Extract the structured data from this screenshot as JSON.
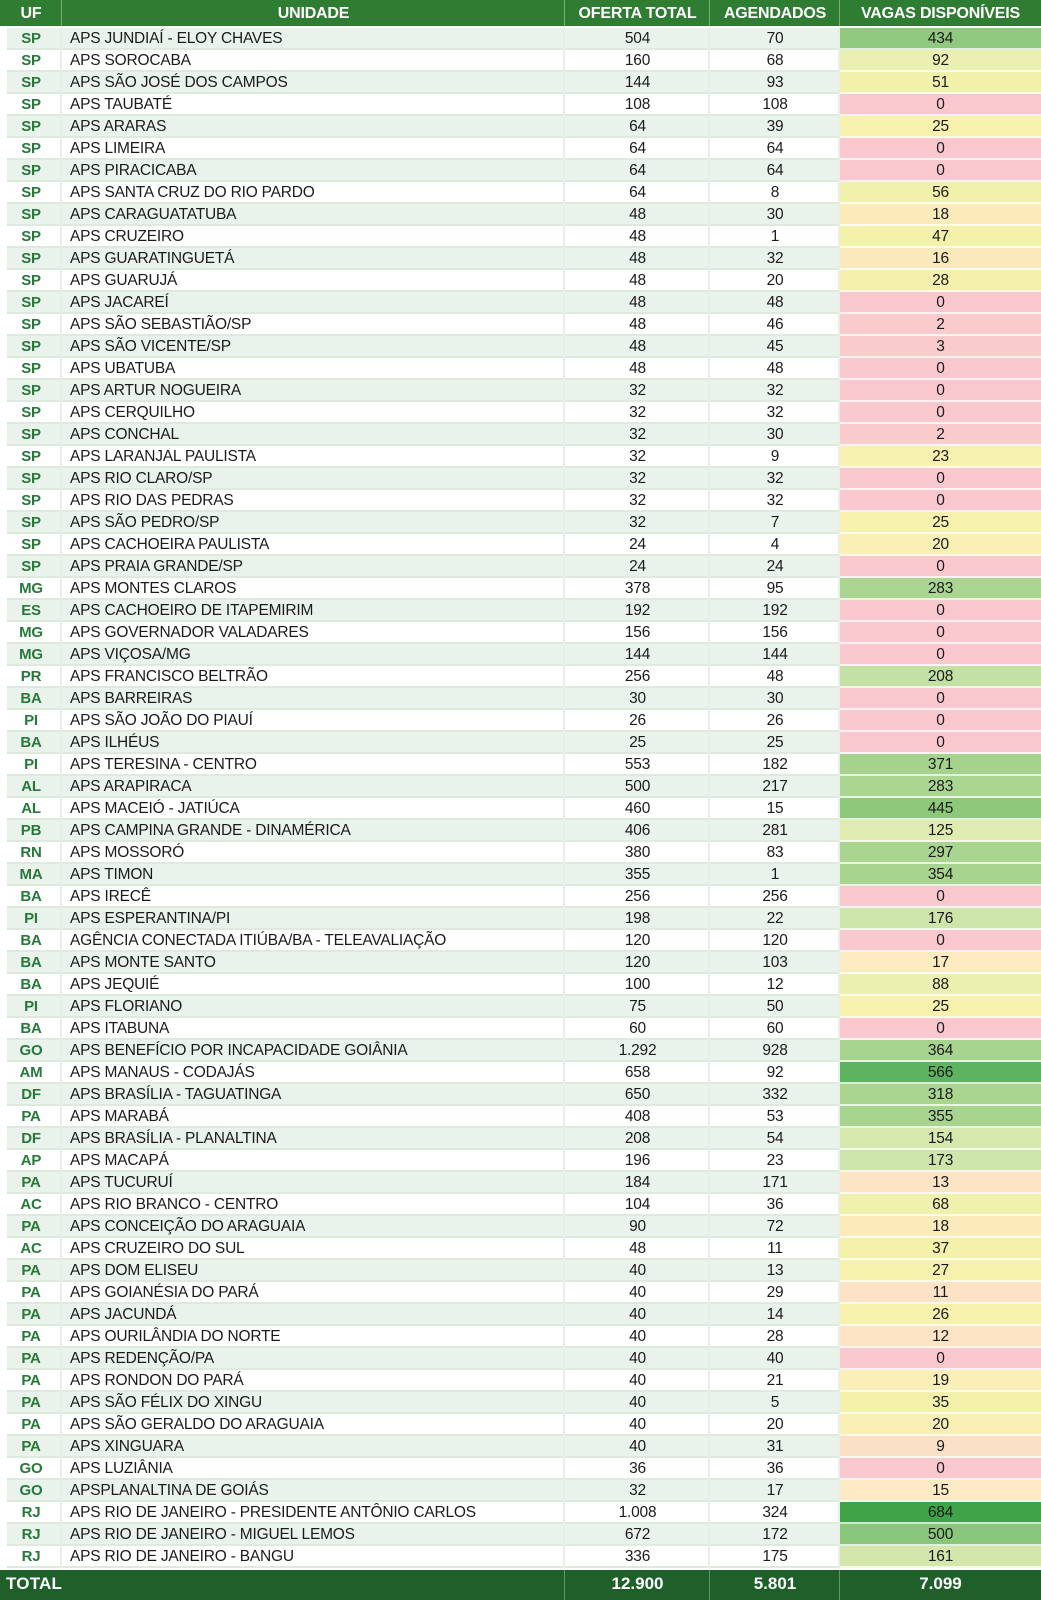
{
  "columns": {
    "uf": "UF",
    "unidade": "UNIDADE",
    "oferta": "OFERTA TOTAL",
    "agendados": "AGENDADOS",
    "vagas": "VAGAS DISPONÍVEIS"
  },
  "total": {
    "label": "TOTAL",
    "oferta": "12.900",
    "agendados": "5.801",
    "vagas": "7.099"
  },
  "colors": {
    "header_bg": "#2F7D33",
    "total_bg": "#1E5F2A",
    "row_light_bg": "#E9F3EB",
    "row_white_bg": "#FFFFFF",
    "uf_text_color": "#27793A",
    "text_color": "#1B1B1B"
  },
  "rows": [
    {
      "uf": "SP",
      "unidade": "APS JUNDIAÍ - ELOY CHAVES",
      "oferta": "504",
      "agendados": "70",
      "vagas": "434",
      "vagas_color": "#8FC97E"
    },
    {
      "uf": "SP",
      "unidade": "APS SOROCABA",
      "oferta": "160",
      "agendados": "68",
      "vagas": "92",
      "vagas_color": "#EAF0B1"
    },
    {
      "uf": "SP",
      "unidade": "APS SÃO JOSÉ DOS CAMPOS",
      "oferta": "144",
      "agendados": "93",
      "vagas": "51",
      "vagas_color": "#F2F1AA"
    },
    {
      "uf": "SP",
      "unidade": "APS TAUBATÉ",
      "oferta": "108",
      "agendados": "108",
      "vagas": "0",
      "vagas_color": "#F9C8CF"
    },
    {
      "uf": "SP",
      "unidade": "APS ARARAS",
      "oferta": "64",
      "agendados": "39",
      "vagas": "25",
      "vagas_color": "#F6F1AD"
    },
    {
      "uf": "SP",
      "unidade": "APS LIMEIRA",
      "oferta": "64",
      "agendados": "64",
      "vagas": "0",
      "vagas_color": "#F9C8CF"
    },
    {
      "uf": "SP",
      "unidade": "APS PIRACICABA",
      "oferta": "64",
      "agendados": "64",
      "vagas": "0",
      "vagas_color": "#F9C8CF"
    },
    {
      "uf": "SP",
      "unidade": "APS SANTA CRUZ DO RIO PARDO",
      "oferta": "64",
      "agendados": "8",
      "vagas": "56",
      "vagas_color": "#F1F1AB"
    },
    {
      "uf": "SP",
      "unidade": "APS CARAGUATATUBA",
      "oferta": "48",
      "agendados": "30",
      "vagas": "18",
      "vagas_color": "#FBEBBB"
    },
    {
      "uf": "SP",
      "unidade": "APS CRUZEIRO",
      "oferta": "48",
      "agendados": "1",
      "vagas": "47",
      "vagas_color": "#F3F1AA"
    },
    {
      "uf": "SP",
      "unidade": "APS GUARATINGUETÁ",
      "oferta": "48",
      "agendados": "32",
      "vagas": "16",
      "vagas_color": "#FBE9BE"
    },
    {
      "uf": "SP",
      "unidade": "APS GUARUJÁ",
      "oferta": "48",
      "agendados": "20",
      "vagas": "28",
      "vagas_color": "#F5F1AC"
    },
    {
      "uf": "SP",
      "unidade": "APS JACAREÍ",
      "oferta": "48",
      "agendados": "48",
      "vagas": "0",
      "vagas_color": "#F9C8CF"
    },
    {
      "uf": "SP",
      "unidade": "APS SÃO SEBASTIÃO/SP",
      "oferta": "48",
      "agendados": "46",
      "vagas": "2",
      "vagas_color": "#F9CBCD"
    },
    {
      "uf": "SP",
      "unidade": "APS SÃO VICENTE/SP",
      "oferta": "48",
      "agendados": "45",
      "vagas": "3",
      "vagas_color": "#F9CCCB"
    },
    {
      "uf": "SP",
      "unidade": "APS UBATUBA",
      "oferta": "48",
      "agendados": "48",
      "vagas": "0",
      "vagas_color": "#F9C8CF"
    },
    {
      "uf": "SP",
      "unidade": "APS ARTUR NOGUEIRA",
      "oferta": "32",
      "agendados": "32",
      "vagas": "0",
      "vagas_color": "#F9C8CF"
    },
    {
      "uf": "SP",
      "unidade": "APS CERQUILHO",
      "oferta": "32",
      "agendados": "32",
      "vagas": "0",
      "vagas_color": "#F9C8CF"
    },
    {
      "uf": "SP",
      "unidade": "APS CONCHAL",
      "oferta": "32",
      "agendados": "30",
      "vagas": "2",
      "vagas_color": "#F9CBCD"
    },
    {
      "uf": "SP",
      "unidade": "APS LARANJAL PAULISTA",
      "oferta": "32",
      "agendados": "9",
      "vagas": "23",
      "vagas_color": "#F7F1AF"
    },
    {
      "uf": "SP",
      "unidade": "APS RIO CLARO/SP",
      "oferta": "32",
      "agendados": "32",
      "vagas": "0",
      "vagas_color": "#F9C8CF"
    },
    {
      "uf": "SP",
      "unidade": "APS RIO DAS PEDRAS",
      "oferta": "32",
      "agendados": "32",
      "vagas": "0",
      "vagas_color": "#F9C8CF"
    },
    {
      "uf": "SP",
      "unidade": "APS SÃO PEDRO/SP",
      "oferta": "32",
      "agendados": "7",
      "vagas": "25",
      "vagas_color": "#F6F1AD"
    },
    {
      "uf": "SP",
      "unidade": "APS CACHOEIRA PAULISTA",
      "oferta": "24",
      "agendados": "4",
      "vagas": "20",
      "vagas_color": "#F9EFB5"
    },
    {
      "uf": "SP",
      "unidade": "APS PRAIA GRANDE/SP",
      "oferta": "24",
      "agendados": "24",
      "vagas": "0",
      "vagas_color": "#F9C8CF"
    },
    {
      "uf": "MG",
      "unidade": "APS MONTES CLAROS",
      "oferta": "378",
      "agendados": "95",
      "vagas": "283",
      "vagas_color": "#ABD691"
    },
    {
      "uf": "ES",
      "unidade": "APS CACHOEIRO DE ITAPEMIRIM",
      "oferta": "192",
      "agendados": "192",
      "vagas": "0",
      "vagas_color": "#F9C8CF"
    },
    {
      "uf": "MG",
      "unidade": "APS GOVERNADOR VALADARES",
      "oferta": "156",
      "agendados": "156",
      "vagas": "0",
      "vagas_color": "#F9C8CF"
    },
    {
      "uf": "MG",
      "unidade": "APS VIÇOSA/MG",
      "oferta": "144",
      "agendados": "144",
      "vagas": "0",
      "vagas_color": "#F9C8CF"
    },
    {
      "uf": "PR",
      "unidade": "APS FRANCISCO BELTRÃO",
      "oferta": "256",
      "agendados": "48",
      "vagas": "208",
      "vagas_color": "#C3E0A5"
    },
    {
      "uf": "BA",
      "unidade": "APS BARREIRAS",
      "oferta": "30",
      "agendados": "30",
      "vagas": "0",
      "vagas_color": "#F9C8CF"
    },
    {
      "uf": "PI",
      "unidade": "APS SÃO JOÃO DO PIAUÍ",
      "oferta": "26",
      "agendados": "26",
      "vagas": "0",
      "vagas_color": "#F9C8CF"
    },
    {
      "uf": "BA",
      "unidade": "APS ILHÉUS",
      "oferta": "25",
      "agendados": "25",
      "vagas": "0",
      "vagas_color": "#F9C8CF"
    },
    {
      "uf": "PI",
      "unidade": "APS TERESINA - CENTRO",
      "oferta": "553",
      "agendados": "182",
      "vagas": "371",
      "vagas_color": "#A5D38D"
    },
    {
      "uf": "AL",
      "unidade": "APS ARAPIRACA",
      "oferta": "500",
      "agendados": "217",
      "vagas": "283",
      "vagas_color": "#ABD691"
    },
    {
      "uf": "AL",
      "unidade": "APS MACEIÓ - JATIÚCA",
      "oferta": "460",
      "agendados": "15",
      "vagas": "445",
      "vagas_color": "#8DC87B"
    },
    {
      "uf": "PB",
      "unidade": "APS CAMPINA GRANDE - DINAMÉRICA",
      "oferta": "406",
      "agendados": "281",
      "vagas": "125",
      "vagas_color": "#E0ECAF"
    },
    {
      "uf": "RN",
      "unidade": "APS MOSSORÓ",
      "oferta": "380",
      "agendados": "83",
      "vagas": "297",
      "vagas_color": "#AAD590"
    },
    {
      "uf": "MA",
      "unidade": "APS TIMON",
      "oferta": "355",
      "agendados": "1",
      "vagas": "354",
      "vagas_color": "#A7D48E"
    },
    {
      "uf": "BA",
      "unidade": "APS IRECÊ",
      "oferta": "256",
      "agendados": "256",
      "vagas": "0",
      "vagas_color": "#F9C8CF"
    },
    {
      "uf": "PI",
      "unidade": "APS ESPERANTINA/PI",
      "oferta": "198",
      "agendados": "22",
      "vagas": "176",
      "vagas_color": "#CDE4AA"
    },
    {
      "uf": "BA",
      "unidade": "AGÊNCIA CONECTADA ITIÚBA/BA - TELEAVALIAÇÃO",
      "oferta": "120",
      "agendados": "120",
      "vagas": "0",
      "vagas_color": "#F9C8CF"
    },
    {
      "uf": "BA",
      "unidade": "APS MONTE SANTO",
      "oferta": "120",
      "agendados": "103",
      "vagas": "17",
      "vagas_color": "#FCEBC0"
    },
    {
      "uf": "BA",
      "unidade": "APS JEQUIÉ",
      "oferta": "100",
      "agendados": "12",
      "vagas": "88",
      "vagas_color": "#EBF0B0"
    },
    {
      "uf": "PI",
      "unidade": "APS FLORIANO",
      "oferta": "75",
      "agendados": "50",
      "vagas": "25",
      "vagas_color": "#F6F1AD"
    },
    {
      "uf": "BA",
      "unidade": "APS ITABUNA",
      "oferta": "60",
      "agendados": "60",
      "vagas": "0",
      "vagas_color": "#F9C8CF"
    },
    {
      "uf": "GO",
      "unidade": "APS BENEFÍCIO POR INCAPACIDADE GOIÂNIA",
      "oferta": "1.292",
      "agendados": "928",
      "vagas": "364",
      "vagas_color": "#A6D48E"
    },
    {
      "uf": "AM",
      "unidade": "APS MANAUS - CODAJÁS",
      "oferta": "658",
      "agendados": "92",
      "vagas": "566",
      "vagas_color": "#5DB35F"
    },
    {
      "uf": "DF",
      "unidade": "APS BRASÍLIA - TAGUATINGA",
      "oferta": "650",
      "agendados": "332",
      "vagas": "318",
      "vagas_color": "#A9D58F"
    },
    {
      "uf": "PA",
      "unidade": "APS MARABÁ",
      "oferta": "408",
      "agendados": "53",
      "vagas": "355",
      "vagas_color": "#A7D48E"
    },
    {
      "uf": "DF",
      "unidade": "APS BRASÍLIA - PLANALTINA",
      "oferta": "208",
      "agendados": "54",
      "vagas": "154",
      "vagas_color": "#D6E8AC"
    },
    {
      "uf": "AP",
      "unidade": "APS MACAPÁ",
      "oferta": "196",
      "agendados": "23",
      "vagas": "173",
      "vagas_color": "#CEE5AB"
    },
    {
      "uf": "PA",
      "unidade": "APS TUCURUÍ",
      "oferta": "184",
      "agendados": "171",
      "vagas": "13",
      "vagas_color": "#FCE5C5"
    },
    {
      "uf": "AC",
      "unidade": "APS RIO BRANCO - CENTRO",
      "oferta": "104",
      "agendados": "36",
      "vagas": "68",
      "vagas_color": "#EFF1AC"
    },
    {
      "uf": "PA",
      "unidade": "APS CONCEIÇÃO DO ARAGUAIA",
      "oferta": "90",
      "agendados": "72",
      "vagas": "18",
      "vagas_color": "#FBEBBB"
    },
    {
      "uf": "AC",
      "unidade": "APS CRUZEIRO DO SUL",
      "oferta": "48",
      "agendados": "11",
      "vagas": "37",
      "vagas_color": "#F4F1AB"
    },
    {
      "uf": "PA",
      "unidade": "APS DOM ELISEU",
      "oferta": "40",
      "agendados": "13",
      "vagas": "27",
      "vagas_color": "#F6F1AC"
    },
    {
      "uf": "PA",
      "unidade": "APS GOIANÉSIA DO PARÁ",
      "oferta": "40",
      "agendados": "29",
      "vagas": "11",
      "vagas_color": "#FCE3C6"
    },
    {
      "uf": "PA",
      "unidade": "APS JACUNDÁ",
      "oferta": "40",
      "agendados": "14",
      "vagas": "26",
      "vagas_color": "#F6F1AD"
    },
    {
      "uf": "PA",
      "unidade": "APS OURILÂNDIA DO NORTE",
      "oferta": "40",
      "agendados": "28",
      "vagas": "12",
      "vagas_color": "#FCE4C5"
    },
    {
      "uf": "PA",
      "unidade": "APS REDENÇÃO/PA",
      "oferta": "40",
      "agendados": "40",
      "vagas": "0",
      "vagas_color": "#F9C8CF"
    },
    {
      "uf": "PA",
      "unidade": "APS RONDON DO PARÁ",
      "oferta": "40",
      "agendados": "21",
      "vagas": "19",
      "vagas_color": "#FAEEB9"
    },
    {
      "uf": "PA",
      "unidade": "APS SÃO FÉLIX DO XINGU",
      "oferta": "40",
      "agendados": "5",
      "vagas": "35",
      "vagas_color": "#F4F1AB"
    },
    {
      "uf": "PA",
      "unidade": "APS SÃO GERALDO DO ARAGUAIA",
      "oferta": "40",
      "agendados": "20",
      "vagas": "20",
      "vagas_color": "#F9EFB5"
    },
    {
      "uf": "PA",
      "unidade": "APS XINGUARA",
      "oferta": "40",
      "agendados": "31",
      "vagas": "9",
      "vagas_color": "#FBE0C8"
    },
    {
      "uf": "GO",
      "unidade": "APS LUZIÂNIA",
      "oferta": "36",
      "agendados": "36",
      "vagas": "0",
      "vagas_color": "#F9C8CF"
    },
    {
      "uf": "GO",
      "unidade": "APSPLANALTINA DE GOIÁS",
      "oferta": "32",
      "agendados": "17",
      "vagas": "15",
      "vagas_color": "#FCEAC4"
    },
    {
      "uf": "RJ",
      "unidade": "APS RIO DE JANEIRO - PRESIDENTE ANTÔNIO CARLOS",
      "oferta": "1.008",
      "agendados": "324",
      "vagas": "684",
      "vagas_color": "#3FA347"
    },
    {
      "uf": "RJ",
      "unidade": "APS RIO DE JANEIRO - MIGUEL LEMOS",
      "oferta": "672",
      "agendados": "172",
      "vagas": "500",
      "vagas_color": "#8BC77A"
    },
    {
      "uf": "RJ",
      "unidade": "APS RIO DE JANEIRO - BANGU",
      "oferta": "336",
      "agendados": "175",
      "vagas": "161",
      "vagas_color": "#D3E6AB"
    }
  ]
}
